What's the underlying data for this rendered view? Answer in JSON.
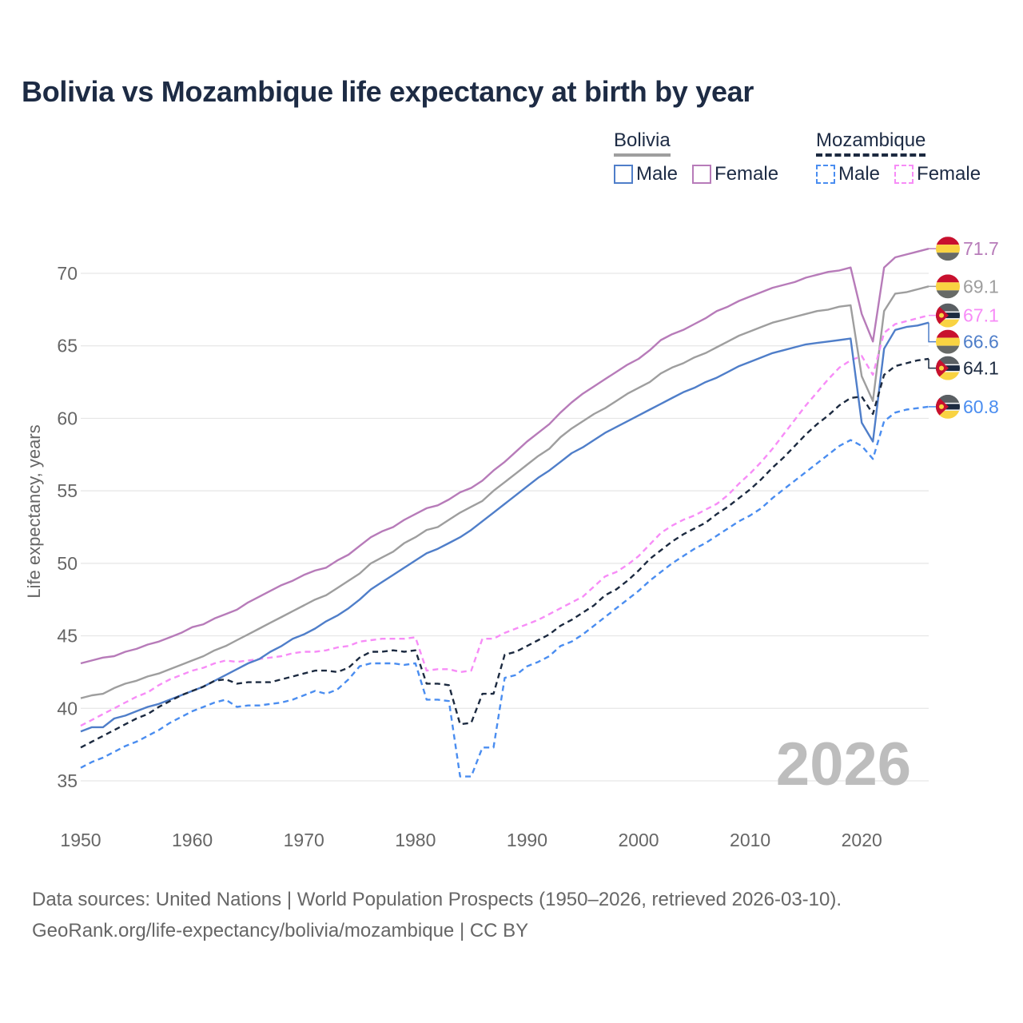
{
  "title": "Bolivia vs Mozambique life expectancy at birth by year",
  "legend": {
    "groups": [
      {
        "name": "Bolivia",
        "style": "solid",
        "underline_color": "#9e9e9e",
        "items": [
          {
            "label": "Male",
            "color": "#4f7ec9"
          },
          {
            "label": "Female",
            "color": "#b77bb9"
          }
        ]
      },
      {
        "name": "Mozambique",
        "style": "dashed",
        "underline_color": "#1c2a40",
        "items": [
          {
            "label": "Male",
            "color": "#4a8df0"
          },
          {
            "label": "Female",
            "color": "#f78cf7"
          }
        ]
      }
    ]
  },
  "source": {
    "line1": "Data sources: United Nations | World Population Prospects (1950–2026, retrieved 2026-03-10).",
    "line2": "GeoRank.org/life-expectancy/bolivia/mozambique | CC BY"
  },
  "chart_data": {
    "type": "line",
    "title": "Bolivia vs Mozambique life expectancy at birth by year",
    "xlabel": "",
    "ylabel": "Life expectancy, years",
    "xlim": [
      1950,
      2026
    ],
    "ylim": [
      33,
      73
    ],
    "xticks": [
      "1950",
      "1960",
      "1970",
      "1980",
      "1990",
      "2000",
      "2010",
      "2020"
    ],
    "yticks": [
      "35",
      "40",
      "45",
      "50",
      "55",
      "60",
      "65",
      "70"
    ],
    "grid": true,
    "legend_position": "top-right",
    "year_watermark": "2026",
    "x_start": 1950,
    "series": [
      {
        "name": "Bolivia Female",
        "country": "Bolivia",
        "color": "#b77bb9",
        "dash": false,
        "end_label": "71.7",
        "values": [
          43.1,
          43.3,
          43.5,
          43.6,
          43.9,
          44.1,
          44.4,
          44.6,
          44.9,
          45.2,
          45.6,
          45.8,
          46.2,
          46.5,
          46.8,
          47.3,
          47.7,
          48.1,
          48.5,
          48.8,
          49.2,
          49.5,
          49.7,
          50.2,
          50.6,
          51.2,
          51.8,
          52.2,
          52.5,
          53.0,
          53.4,
          53.8,
          54.0,
          54.4,
          54.9,
          55.2,
          55.7,
          56.4,
          57.0,
          57.7,
          58.4,
          59.0,
          59.6,
          60.4,
          61.1,
          61.7,
          62.2,
          62.7,
          63.2,
          63.7,
          64.1,
          64.7,
          65.4,
          65.8,
          66.1,
          66.5,
          66.9,
          67.4,
          67.7,
          68.1,
          68.4,
          68.7,
          69.0,
          69.2,
          69.4,
          69.7,
          69.9,
          70.1,
          70.2,
          70.4,
          67.2,
          65.3,
          70.4,
          71.1,
          71.3,
          71.5,
          71.7
        ]
      },
      {
        "name": "Bolivia",
        "country": "Bolivia",
        "color": "#9e9e9e",
        "dash": false,
        "end_label": "69.1",
        "values": [
          40.7,
          40.9,
          41.0,
          41.4,
          41.7,
          41.9,
          42.2,
          42.4,
          42.7,
          43.0,
          43.3,
          43.6,
          44.0,
          44.3,
          44.7,
          45.1,
          45.5,
          45.9,
          46.3,
          46.7,
          47.1,
          47.5,
          47.8,
          48.3,
          48.8,
          49.3,
          50.0,
          50.4,
          50.8,
          51.4,
          51.8,
          52.3,
          52.5,
          53.0,
          53.5,
          53.9,
          54.3,
          55.0,
          55.6,
          56.2,
          56.8,
          57.4,
          57.9,
          58.7,
          59.3,
          59.8,
          60.3,
          60.7,
          61.2,
          61.7,
          62.1,
          62.5,
          63.1,
          63.5,
          63.8,
          64.2,
          64.5,
          64.9,
          65.3,
          65.7,
          66.0,
          66.3,
          66.6,
          66.8,
          67.0,
          67.2,
          67.4,
          67.5,
          67.7,
          67.8,
          62.9,
          61.2,
          67.4,
          68.6,
          68.7,
          68.9,
          69.1
        ]
      },
      {
        "name": "Mozambique Female",
        "country": "Mozambique",
        "color": "#f78cf7",
        "dash": true,
        "end_label": "67.1",
        "values": [
          38.8,
          39.2,
          39.6,
          40.0,
          40.4,
          40.8,
          41.1,
          41.6,
          42.0,
          42.3,
          42.6,
          42.8,
          43.1,
          43.3,
          43.2,
          43.3,
          43.4,
          43.5,
          43.6,
          43.8,
          43.9,
          43.9,
          44.0,
          44.2,
          44.3,
          44.6,
          44.7,
          44.8,
          44.8,
          44.8,
          44.9,
          42.6,
          42.7,
          42.7,
          42.5,
          42.6,
          44.8,
          44.8,
          45.2,
          45.5,
          45.8,
          46.1,
          46.5,
          46.9,
          47.3,
          47.7,
          48.4,
          49.1,
          49.4,
          49.9,
          50.5,
          51.3,
          52.1,
          52.6,
          53.0,
          53.3,
          53.7,
          54.1,
          54.7,
          55.5,
          56.2,
          57.0,
          57.9,
          58.9,
          59.9,
          60.9,
          61.8,
          62.7,
          63.5,
          64.0,
          64.3,
          63.0,
          65.9,
          66.5,
          66.7,
          66.9,
          67.1
        ]
      },
      {
        "name": "Bolivia Male",
        "country": "Bolivia",
        "color": "#4f7ec9",
        "dash": false,
        "end_label": "66.6",
        "values": [
          38.4,
          38.7,
          38.7,
          39.3,
          39.5,
          39.8,
          40.1,
          40.3,
          40.6,
          40.9,
          41.2,
          41.5,
          41.9,
          42.3,
          42.7,
          43.1,
          43.4,
          43.9,
          44.3,
          44.8,
          45.1,
          45.5,
          46.0,
          46.4,
          46.9,
          47.5,
          48.2,
          48.7,
          49.2,
          49.7,
          50.2,
          50.7,
          51.0,
          51.4,
          51.8,
          52.3,
          52.9,
          53.5,
          54.1,
          54.7,
          55.3,
          55.9,
          56.4,
          57.0,
          57.6,
          58.0,
          58.5,
          59.0,
          59.4,
          59.8,
          60.2,
          60.6,
          61.0,
          61.4,
          61.8,
          62.1,
          62.5,
          62.8,
          63.2,
          63.6,
          63.9,
          64.2,
          64.5,
          64.7,
          64.9,
          65.1,
          65.2,
          65.3,
          65.4,
          65.5,
          59.7,
          58.4,
          64.8,
          66.1,
          66.3,
          66.4,
          66.6
        ]
      },
      {
        "name": "Mozambique",
        "country": "Mozambique",
        "color": "#1c2a40",
        "dash": true,
        "end_label": "64.1",
        "values": [
          37.3,
          37.7,
          38.1,
          38.5,
          38.9,
          39.3,
          39.6,
          40.1,
          40.5,
          40.9,
          41.2,
          41.5,
          41.9,
          42.0,
          41.7,
          41.8,
          41.8,
          41.8,
          42.0,
          42.2,
          42.4,
          42.6,
          42.6,
          42.5,
          42.8,
          43.5,
          43.9,
          43.9,
          44.0,
          43.9,
          44.0,
          41.7,
          41.7,
          41.6,
          38.9,
          39.0,
          41.0,
          41.0,
          43.7,
          43.9,
          44.3,
          44.7,
          45.1,
          45.7,
          46.1,
          46.6,
          47.1,
          47.8,
          48.2,
          48.8,
          49.5,
          50.3,
          50.9,
          51.5,
          52.0,
          52.4,
          52.8,
          53.4,
          53.9,
          54.5,
          55.1,
          55.8,
          56.6,
          57.3,
          58.1,
          58.9,
          59.6,
          60.2,
          60.9,
          61.4,
          61.5,
          60.3,
          63.0,
          63.6,
          63.8,
          64.0,
          64.1
        ]
      },
      {
        "name": "Mozambique Male",
        "country": "Mozambique",
        "color": "#4a8df0",
        "dash": true,
        "end_label": "60.8",
        "values": [
          35.9,
          36.3,
          36.6,
          37.0,
          37.4,
          37.7,
          38.1,
          38.5,
          39.0,
          39.4,
          39.8,
          40.1,
          40.4,
          40.6,
          40.1,
          40.2,
          40.2,
          40.3,
          40.4,
          40.6,
          40.9,
          41.2,
          41.0,
          41.3,
          42.0,
          42.9,
          43.1,
          43.1,
          43.1,
          43.0,
          43.1,
          40.6,
          40.6,
          40.5,
          35.3,
          35.3,
          37.3,
          37.3,
          42.1,
          42.3,
          42.9,
          43.2,
          43.6,
          44.3,
          44.6,
          45.1,
          45.7,
          46.3,
          46.9,
          47.5,
          48.1,
          48.8,
          49.4,
          50.0,
          50.5,
          51.0,
          51.4,
          51.9,
          52.4,
          52.9,
          53.3,
          53.8,
          54.5,
          55.1,
          55.7,
          56.3,
          56.9,
          57.5,
          58.1,
          58.5,
          58.1,
          57.2,
          59.8,
          60.4,
          60.6,
          60.7,
          60.8
        ]
      }
    ]
  }
}
